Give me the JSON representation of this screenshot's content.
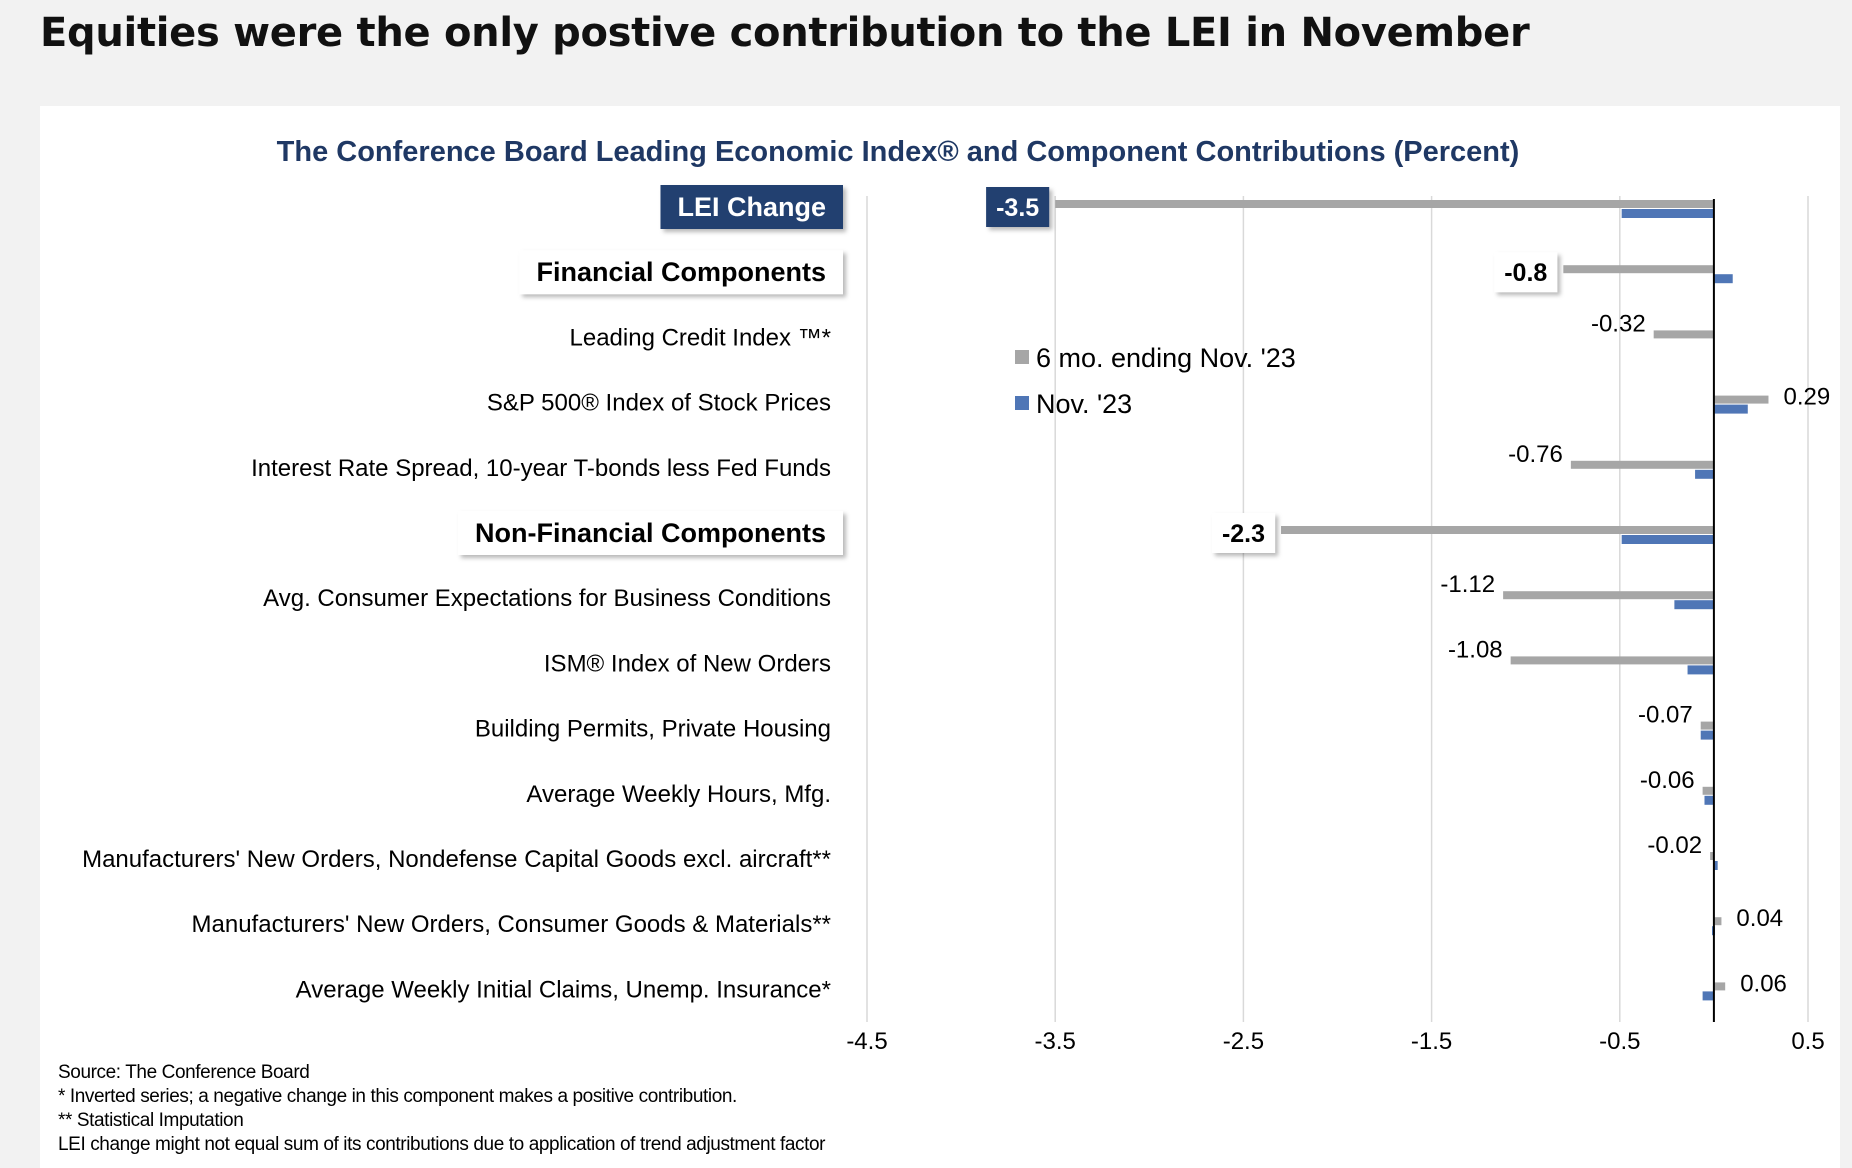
{
  "headline": "Equities were the only postive contribution to the LEI in November",
  "chart_data": {
    "type": "bar",
    "orientation": "horizontal",
    "title": "The Conference Board Leading Economic Index® and Component Contributions (Percent)",
    "xlim": [
      -4.5,
      0.5
    ],
    "x_ticks": [
      "-4.5",
      "-3.5",
      "-2.5",
      "-1.5",
      "-0.5",
      "0.5"
    ],
    "grid": "vertical",
    "legend_position": "upper-center",
    "categories": [
      "LEI Change",
      "Financial Components",
      "Leading Credit Index ™*",
      "S&P 500® Index of Stock Prices",
      "Interest Rate Spread, 10-year T-bonds less Fed Funds",
      "Non-Financial Components",
      "Avg. Consumer Expectations for Business Conditions",
      "ISM® Index of New Orders",
      "Building Permits, Private Housing",
      "Average Weekly Hours, Mfg.",
      "Manufacturers' New Orders, Nondefense Capital Goods excl. aircraft**",
      "Manufacturers' New Orders, Consumer Goods & Materials**",
      "Average Weekly Initial Claims, Unemp. Insurance*"
    ],
    "category_style": [
      "dark-box",
      "white-box",
      "plain",
      "plain",
      "plain",
      "white-box",
      "plain",
      "plain",
      "plain",
      "plain",
      "plain",
      "plain",
      "plain"
    ],
    "series": [
      {
        "name": "6 mo. ending Nov. '23",
        "color": "#a6a6a6",
        "values": [
          -3.5,
          -0.8,
          -0.32,
          0.29,
          -0.76,
          -2.3,
          -1.12,
          -1.08,
          -0.07,
          -0.06,
          -0.02,
          0.04,
          0.06
        ],
        "labels": [
          "-3.5",
          "-0.8",
          "-0.32",
          "0.29",
          "-0.76",
          "-2.3",
          "-1.12",
          "-1.08",
          "-0.07",
          "-0.06",
          "-0.02",
          "0.04",
          "0.06"
        ],
        "label_style": [
          "dark-box",
          "white-box",
          "plain",
          "plain",
          "plain",
          "white-box",
          "plain",
          "plain",
          "plain",
          "plain",
          "plain",
          "plain",
          "plain"
        ]
      },
      {
        "name": "Nov. '23",
        "color": "#4f76b6",
        "values": [
          -0.49,
          0.1,
          0.0,
          0.18,
          -0.1,
          -0.49,
          -0.21,
          -0.14,
          -0.07,
          -0.05,
          0.02,
          -0.01,
          -0.06
        ]
      }
    ]
  },
  "notes": [
    "Source: The Conference Board",
    "*  Inverted series; a negative change in this component makes a positive contribution.",
    "**  Statistical Imputation",
    "LEI change might not equal sum of    its contributions due to application of trend adjustment factor"
  ],
  "colors": {
    "title_blue": "#1f3864",
    "dark_box": "#223f6f"
  }
}
